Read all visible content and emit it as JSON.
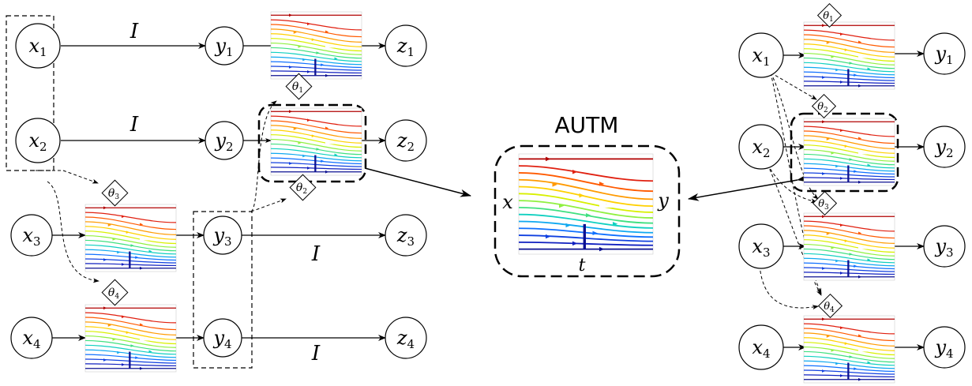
{
  "colors": {
    "stroke": "#000000",
    "flow_palette": [
      "#b00000",
      "#e02010",
      "#ff5a00",
      "#ff9a00",
      "#ffd000",
      "#d8f000",
      "#90f040",
      "#40e080",
      "#10d0c0",
      "#10a8f0",
      "#1070ff",
      "#1040e0",
      "#1020c0",
      "#0c1090"
    ]
  },
  "left": {
    "nodes": [
      {
        "id": "x1",
        "base": "x",
        "sub": "1"
      },
      {
        "id": "x2",
        "base": "x",
        "sub": "2"
      },
      {
        "id": "x3",
        "base": "x",
        "sub": "3"
      },
      {
        "id": "x4",
        "base": "x",
        "sub": "4"
      },
      {
        "id": "y1",
        "base": "y",
        "sub": "1"
      },
      {
        "id": "y2",
        "base": "y",
        "sub": "2"
      },
      {
        "id": "y3",
        "base": "y",
        "sub": "3"
      },
      {
        "id": "y4",
        "base": "y",
        "sub": "4"
      },
      {
        "id": "z1",
        "base": "z",
        "sub": "1"
      },
      {
        "id": "z2",
        "base": "z",
        "sub": "2"
      },
      {
        "id": "z3",
        "base": "z",
        "sub": "3"
      },
      {
        "id": "z4",
        "base": "z",
        "sub": "4"
      }
    ],
    "params": [
      {
        "id": "t1",
        "base": "θ",
        "sub": "1"
      },
      {
        "id": "t2",
        "base": "θ",
        "sub": "2"
      },
      {
        "id": "t3",
        "base": "θ",
        "sub": "3"
      },
      {
        "id": "t4",
        "base": "θ",
        "sub": "4"
      }
    ],
    "identity_label": "I"
  },
  "center": {
    "title": "AUTM",
    "x_label": "x",
    "y_label": "y",
    "t_label": "t"
  },
  "right": {
    "nodes": [
      {
        "id": "x1",
        "base": "x",
        "sub": "1"
      },
      {
        "id": "x2",
        "base": "x",
        "sub": "2"
      },
      {
        "id": "x3",
        "base": "x",
        "sub": "3"
      },
      {
        "id": "x4",
        "base": "x",
        "sub": "4"
      },
      {
        "id": "y1",
        "base": "y",
        "sub": "1"
      },
      {
        "id": "y2",
        "base": "y",
        "sub": "2"
      },
      {
        "id": "y3",
        "base": "y",
        "sub": "3"
      },
      {
        "id": "y4",
        "base": "y",
        "sub": "4"
      }
    ],
    "params": [
      {
        "id": "t1",
        "base": "θ",
        "sub": "1"
      },
      {
        "id": "t2",
        "base": "θ",
        "sub": "2"
      },
      {
        "id": "t3",
        "base": "θ",
        "sub": "3"
      },
      {
        "id": "t4",
        "base": "θ",
        "sub": "4"
      }
    ]
  }
}
